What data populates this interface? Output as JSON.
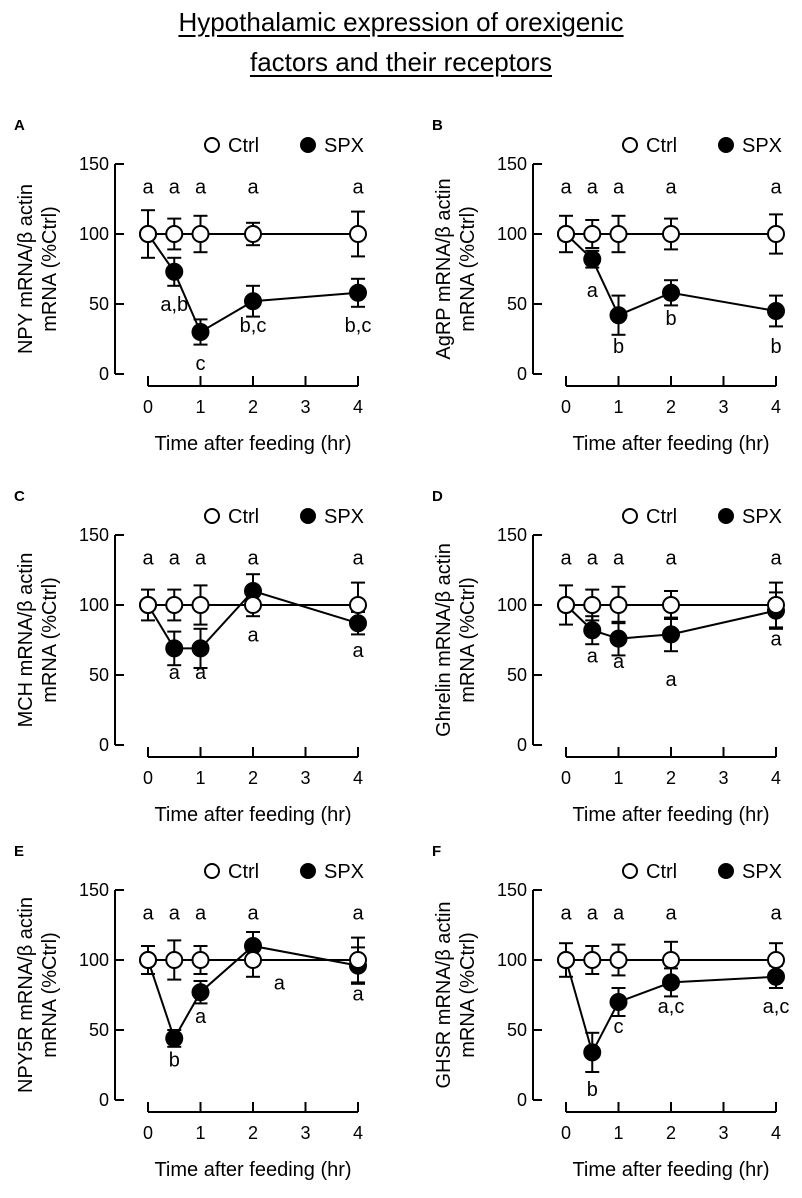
{
  "figure": {
    "title_line1": "Hypothalamic expression of orexigenic",
    "title_line2": "factors and their receptors"
  },
  "chart_data": [
    {
      "type": "line",
      "panel": "A",
      "xlabel": "Time after feeding (hr)",
      "ylabel": "NPY mRNA/β actin mRNA (%Ctrl)",
      "xlim": [
        0,
        4
      ],
      "ylim": [
        0,
        150
      ],
      "xticks": [
        0,
        1,
        2,
        3,
        4
      ],
      "yticks": [
        0,
        50,
        100,
        150
      ],
      "legend": [
        "Ctrl",
        "SPX"
      ],
      "legend_position": "top",
      "x": [
        0,
        0.5,
        1,
        2,
        4
      ],
      "series": [
        {
          "name": "Ctrl",
          "marker": "open-circle",
          "values": [
            100,
            100,
            100,
            100,
            100
          ],
          "errors": [
            17,
            11,
            13,
            8,
            16
          ]
        },
        {
          "name": "SPX",
          "marker": "filled-circle",
          "values": [
            100,
            73,
            30,
            52,
            58
          ],
          "errors": [
            0,
            10,
            9,
            11,
            10
          ]
        }
      ],
      "annotations": [
        {
          "x": 0,
          "y": 129,
          "text": "a"
        },
        {
          "x": 0.5,
          "y": 129,
          "text": "a"
        },
        {
          "x": 1,
          "y": 129,
          "text": "a"
        },
        {
          "x": 2,
          "y": 129,
          "text": "a"
        },
        {
          "x": 4,
          "y": 129,
          "text": "a"
        },
        {
          "x": 0.5,
          "y": 45,
          "text": "a,b"
        },
        {
          "x": 1,
          "y": 3,
          "text": "c"
        },
        {
          "x": 2,
          "y": 30,
          "text": "b,c"
        },
        {
          "x": 4,
          "y": 30,
          "text": "b,c"
        }
      ]
    },
    {
      "type": "line",
      "panel": "B",
      "xlabel": "Time after feeding (hr)",
      "ylabel": "AgRP mRNA/β actin mRNA (%Ctrl)",
      "xlim": [
        0,
        4
      ],
      "ylim": [
        0,
        150
      ],
      "xticks": [
        0,
        1,
        2,
        3,
        4
      ],
      "yticks": [
        0,
        50,
        100,
        150
      ],
      "legend": [
        "Ctrl",
        "SPX"
      ],
      "legend_position": "top",
      "x": [
        0,
        0.5,
        1,
        2,
        4
      ],
      "series": [
        {
          "name": "Ctrl",
          "marker": "open-circle",
          "values": [
            100,
            100,
            100,
            100,
            100
          ],
          "errors": [
            13,
            10,
            13,
            11,
            14
          ]
        },
        {
          "name": "SPX",
          "marker": "filled-circle",
          "values": [
            100,
            82,
            42,
            58,
            45
          ],
          "errors": [
            0,
            6,
            14,
            9,
            11
          ]
        }
      ],
      "annotations": [
        {
          "x": 0,
          "y": 129,
          "text": "a"
        },
        {
          "x": 0.5,
          "y": 129,
          "text": "a"
        },
        {
          "x": 1,
          "y": 129,
          "text": "a"
        },
        {
          "x": 2,
          "y": 129,
          "text": "a"
        },
        {
          "x": 4,
          "y": 129,
          "text": "a"
        },
        {
          "x": 0.5,
          "y": 55,
          "text": "a"
        },
        {
          "x": 1,
          "y": 15,
          "text": "b"
        },
        {
          "x": 2,
          "y": 35,
          "text": "b"
        },
        {
          "x": 4,
          "y": 15,
          "text": "b"
        }
      ]
    },
    {
      "type": "line",
      "panel": "C",
      "xlabel": "Time after feeding (hr)",
      "ylabel": "MCH mRNA/β actin mRNA (%Ctrl)",
      "xlim": [
        0,
        4
      ],
      "ylim": [
        0,
        150
      ],
      "xticks": [
        0,
        1,
        2,
        3,
        4
      ],
      "yticks": [
        0,
        50,
        100,
        150
      ],
      "legend": [
        "Ctrl",
        "SPX"
      ],
      "legend_position": "top",
      "x": [
        0,
        0.5,
        1,
        2,
        4
      ],
      "series": [
        {
          "name": "Ctrl",
          "marker": "open-circle",
          "values": [
            100,
            100,
            100,
            100,
            100
          ],
          "errors": [
            11,
            11,
            14,
            8,
            16
          ]
        },
        {
          "name": "SPX",
          "marker": "filled-circle",
          "values": [
            100,
            69,
            69,
            110,
            87
          ],
          "errors": [
            0,
            12,
            14,
            12,
            8
          ]
        }
      ],
      "annotations": [
        {
          "x": 0,
          "y": 129,
          "text": "a"
        },
        {
          "x": 0.5,
          "y": 129,
          "text": "a"
        },
        {
          "x": 1,
          "y": 129,
          "text": "a"
        },
        {
          "x": 2,
          "y": 129,
          "text": "a"
        },
        {
          "x": 4,
          "y": 129,
          "text": "a"
        },
        {
          "x": 0.5,
          "y": 47,
          "text": "a"
        },
        {
          "x": 1,
          "y": 47,
          "text": "a"
        },
        {
          "x": 2,
          "y": 74,
          "text": "a"
        },
        {
          "x": 4,
          "y": 63,
          "text": "a"
        }
      ]
    },
    {
      "type": "line",
      "panel": "D",
      "xlabel": "Time after feeding (hr)",
      "ylabel": "Ghrelin mRNA/β actin mRNA (%Ctrl)",
      "xlim": [
        0,
        4
      ],
      "ylim": [
        0,
        150
      ],
      "xticks": [
        0,
        1,
        2,
        3,
        4
      ],
      "yticks": [
        0,
        50,
        100,
        150
      ],
      "legend": [
        "Ctrl",
        "SPX"
      ],
      "legend_position": "top",
      "x": [
        0,
        0.5,
        1,
        2,
        4
      ],
      "series": [
        {
          "name": "Ctrl",
          "marker": "open-circle",
          "values": [
            100,
            100,
            100,
            100,
            100
          ],
          "errors": [
            14,
            11,
            13,
            10,
            16
          ]
        },
        {
          "name": "SPX",
          "marker": "filled-circle",
          "values": [
            100,
            82,
            76,
            79,
            96
          ],
          "errors": [
            0,
            10,
            12,
            12,
            13
          ]
        }
      ],
      "annotations": [
        {
          "x": 0,
          "y": 129,
          "text": "a"
        },
        {
          "x": 0.5,
          "y": 129,
          "text": "a"
        },
        {
          "x": 1,
          "y": 129,
          "text": "a"
        },
        {
          "x": 2,
          "y": 129,
          "text": "a"
        },
        {
          "x": 4,
          "y": 129,
          "text": "a"
        },
        {
          "x": 0.5,
          "y": 59,
          "text": "a"
        },
        {
          "x": 1,
          "y": 55,
          "text": "a"
        },
        {
          "x": 2,
          "y": 42,
          "text": "a"
        },
        {
          "x": 4,
          "y": 71,
          "text": "a"
        }
      ]
    },
    {
      "type": "line",
      "panel": "E",
      "xlabel": "Time after feeding (hr)",
      "ylabel": "NPY5R mRNA/β actin mRNA (%Ctrl)",
      "xlim": [
        0,
        4
      ],
      "ylim": [
        0,
        150
      ],
      "xticks": [
        0,
        1,
        2,
        3,
        4
      ],
      "yticks": [
        0,
        50,
        100,
        150
      ],
      "legend": [
        "Ctrl",
        "SPX"
      ],
      "legend_position": "top",
      "x": [
        0,
        0.5,
        1,
        2,
        4
      ],
      "series": [
        {
          "name": "Ctrl",
          "marker": "open-circle",
          "values": [
            100,
            100,
            100,
            100,
            100
          ],
          "errors": [
            10,
            14,
            10,
            12,
            16
          ]
        },
        {
          "name": "SPX",
          "marker": "filled-circle",
          "values": [
            100,
            44,
            77,
            110,
            96
          ],
          "errors": [
            0,
            6,
            8,
            10,
            13
          ]
        }
      ],
      "annotations": [
        {
          "x": 0,
          "y": 129,
          "text": "a"
        },
        {
          "x": 0.5,
          "y": 129,
          "text": "a"
        },
        {
          "x": 1,
          "y": 129,
          "text": "a"
        },
        {
          "x": 2,
          "y": 129,
          "text": "a"
        },
        {
          "x": 4,
          "y": 129,
          "text": "a"
        },
        {
          "x": 0.5,
          "y": 24,
          "text": "b"
        },
        {
          "x": 1,
          "y": 55,
          "text": "a"
        },
        {
          "x": 2.5,
          "y": 79,
          "text": "a"
        },
        {
          "x": 4,
          "y": 71,
          "text": "a"
        }
      ]
    },
    {
      "type": "line",
      "panel": "F",
      "xlabel": "Time after feeding (hr)",
      "ylabel": "GHSR mRNA/β actin mRNA (%Ctrl)",
      "xlim": [
        0,
        4
      ],
      "ylim": [
        0,
        150
      ],
      "xticks": [
        0,
        1,
        2,
        3,
        4
      ],
      "yticks": [
        0,
        50,
        100,
        150
      ],
      "legend": [
        "Ctrl",
        "SPX"
      ],
      "legend_position": "top",
      "x": [
        0,
        0.5,
        1,
        2,
        4
      ],
      "series": [
        {
          "name": "Ctrl",
          "marker": "open-circle",
          "values": [
            100,
            100,
            100,
            100,
            100
          ],
          "errors": [
            12,
            10,
            11,
            13,
            12
          ]
        },
        {
          "name": "SPX",
          "marker": "filled-circle",
          "values": [
            100,
            34,
            70,
            84,
            88
          ],
          "errors": [
            0,
            14,
            10,
            10,
            8
          ]
        }
      ],
      "annotations": [
        {
          "x": 0,
          "y": 129,
          "text": "a"
        },
        {
          "x": 0.5,
          "y": 129,
          "text": "a"
        },
        {
          "x": 1,
          "y": 129,
          "text": "a"
        },
        {
          "x": 2,
          "y": 129,
          "text": "a"
        },
        {
          "x": 4,
          "y": 129,
          "text": "a"
        },
        {
          "x": 0.5,
          "y": 3,
          "text": "b"
        },
        {
          "x": 1,
          "y": 48,
          "text": "c"
        },
        {
          "x": 2,
          "y": 62,
          "text": "a,c"
        },
        {
          "x": 4,
          "y": 62,
          "text": "a,c"
        }
      ]
    }
  ]
}
